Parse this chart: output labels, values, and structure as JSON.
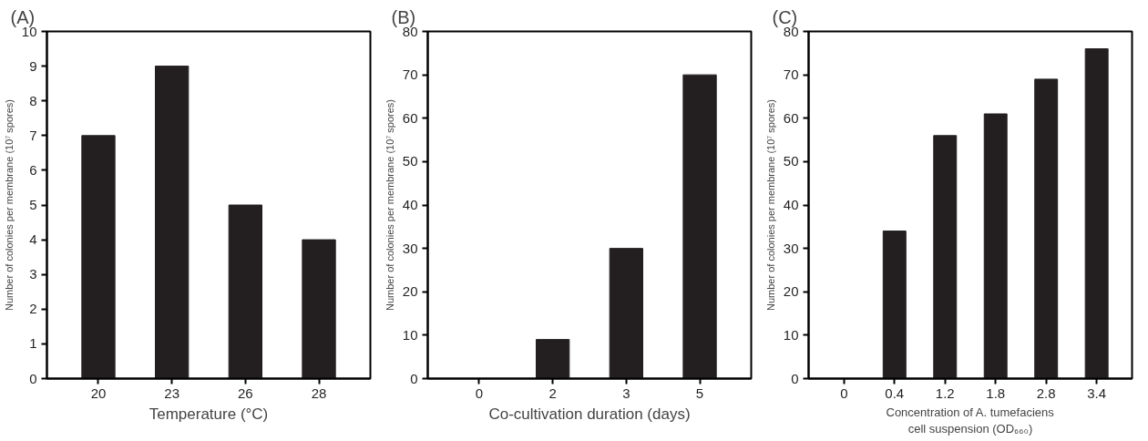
{
  "chart_data": [
    {
      "type": "bar",
      "title": "(A)",
      "categories": [
        "20",
        "23",
        "26",
        "28"
      ],
      "values": [
        7,
        9,
        5,
        4
      ],
      "color": "#231f20",
      "xlabel": "Temperature (°C)",
      "ylabel": "Number of colonies per membrane (10⁷ spores)",
      "ylim": [
        0,
        10
      ],
      "yticks": [
        0,
        1,
        2,
        3,
        4,
        5,
        6,
        7,
        8,
        9,
        10
      ],
      "grid": false
    },
    {
      "type": "bar",
      "title": "(B)",
      "categories": [
        "0",
        "2",
        "3",
        "5"
      ],
      "values": [
        0,
        9,
        30,
        70
      ],
      "color": "#231f20",
      "xlabel": "Co-cultivation duration (days)",
      "ylabel": "Number of colonies per membrane (10⁷ spores)",
      "ylim": [
        0,
        80
      ],
      "yticks": [
        0,
        10,
        20,
        30,
        40,
        50,
        60,
        70,
        80
      ],
      "grid": false
    },
    {
      "type": "bar",
      "title": "(C)",
      "categories": [
        "0",
        "0.4",
        "1.2",
        "1.8",
        "2.8",
        "3.4"
      ],
      "values": [
        0,
        34,
        56,
        61,
        69,
        76
      ],
      "color": "#231f20",
      "xlabel": "Concentration of A. tumefaciens cell suspension (OD₆₆₀)",
      "ylabel": "Number of colonies per membrane (10⁷ spores)",
      "ylim": [
        0,
        80
      ],
      "yticks": [
        0,
        10,
        20,
        30,
        40,
        50,
        60,
        70,
        80
      ],
      "grid": false
    }
  ]
}
